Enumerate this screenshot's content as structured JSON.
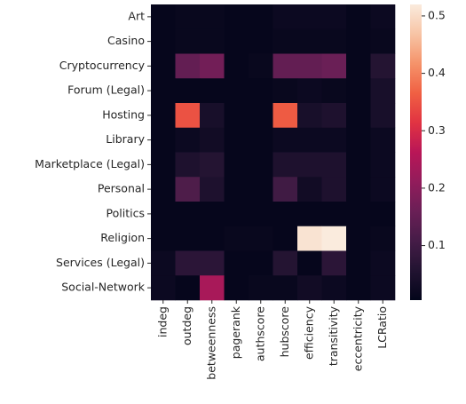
{
  "chart_data": {
    "type": "heatmap",
    "rows": [
      "Art",
      "Casino",
      "Cryptocurrency",
      "Forum (Legal)",
      "Hosting",
      "Library",
      "Marketplace (Legal)",
      "Personal",
      "Politics",
      "Religion",
      "Services (Legal)",
      "Social-Network"
    ],
    "columns": [
      "indeg",
      "outdeg",
      "betweenness",
      "pagerank",
      "authscore",
      "hubscore",
      "efficiency",
      "transitivity",
      "eccentricity",
      "LCRatio"
    ],
    "values": [
      [
        0.01,
        0.015,
        0.015,
        0.01,
        0.01,
        0.02,
        0.02,
        0.02,
        0.01,
        0.02
      ],
      [
        0.01,
        0.015,
        0.015,
        0.01,
        0.01,
        0.015,
        0.015,
        0.015,
        0.01,
        0.015
      ],
      [
        0.01,
        0.15,
        0.17,
        0.01,
        0.015,
        0.15,
        0.15,
        0.16,
        0.01,
        0.06
      ],
      [
        0.01,
        0.01,
        0.01,
        0.01,
        0.01,
        0.015,
        0.02,
        0.015,
        0.01,
        0.04
      ],
      [
        0.01,
        0.35,
        0.04,
        0.01,
        0.01,
        0.36,
        0.04,
        0.05,
        0.01,
        0.04
      ],
      [
        0.01,
        0.02,
        0.03,
        0.01,
        0.01,
        0.02,
        0.02,
        0.02,
        0.01,
        0.02
      ],
      [
        0.01,
        0.05,
        0.06,
        0.01,
        0.01,
        0.05,
        0.05,
        0.05,
        0.01,
        0.02
      ],
      [
        0.01,
        0.12,
        0.05,
        0.01,
        0.01,
        0.1,
        0.03,
        0.05,
        0.01,
        0.02
      ],
      [
        0.01,
        0.01,
        0.01,
        0.01,
        0.01,
        0.01,
        0.01,
        0.01,
        0.01,
        0.01
      ],
      [
        0.01,
        0.01,
        0.01,
        0.015,
        0.015,
        0.01,
        0.51,
        0.52,
        0.01,
        0.015
      ],
      [
        0.02,
        0.07,
        0.07,
        0.01,
        0.01,
        0.06,
        0.01,
        0.07,
        0.01,
        0.02
      ],
      [
        0.02,
        0.01,
        0.24,
        0.01,
        0.015,
        0.015,
        0.03,
        0.02,
        0.01,
        0.02
      ]
    ],
    "clim": [
      0.005,
      0.52
    ],
    "cticks": [
      0.1,
      0.2,
      0.3,
      0.4,
      0.5
    ],
    "colormap": [
      "#03051a",
      "#221331",
      "#451c47",
      "#6a1f56",
      "#921c5b",
      "#b91657",
      "#e13342",
      "#f06043",
      "#f5936a",
      "#f7c4a5",
      "#faebdd"
    ]
  }
}
